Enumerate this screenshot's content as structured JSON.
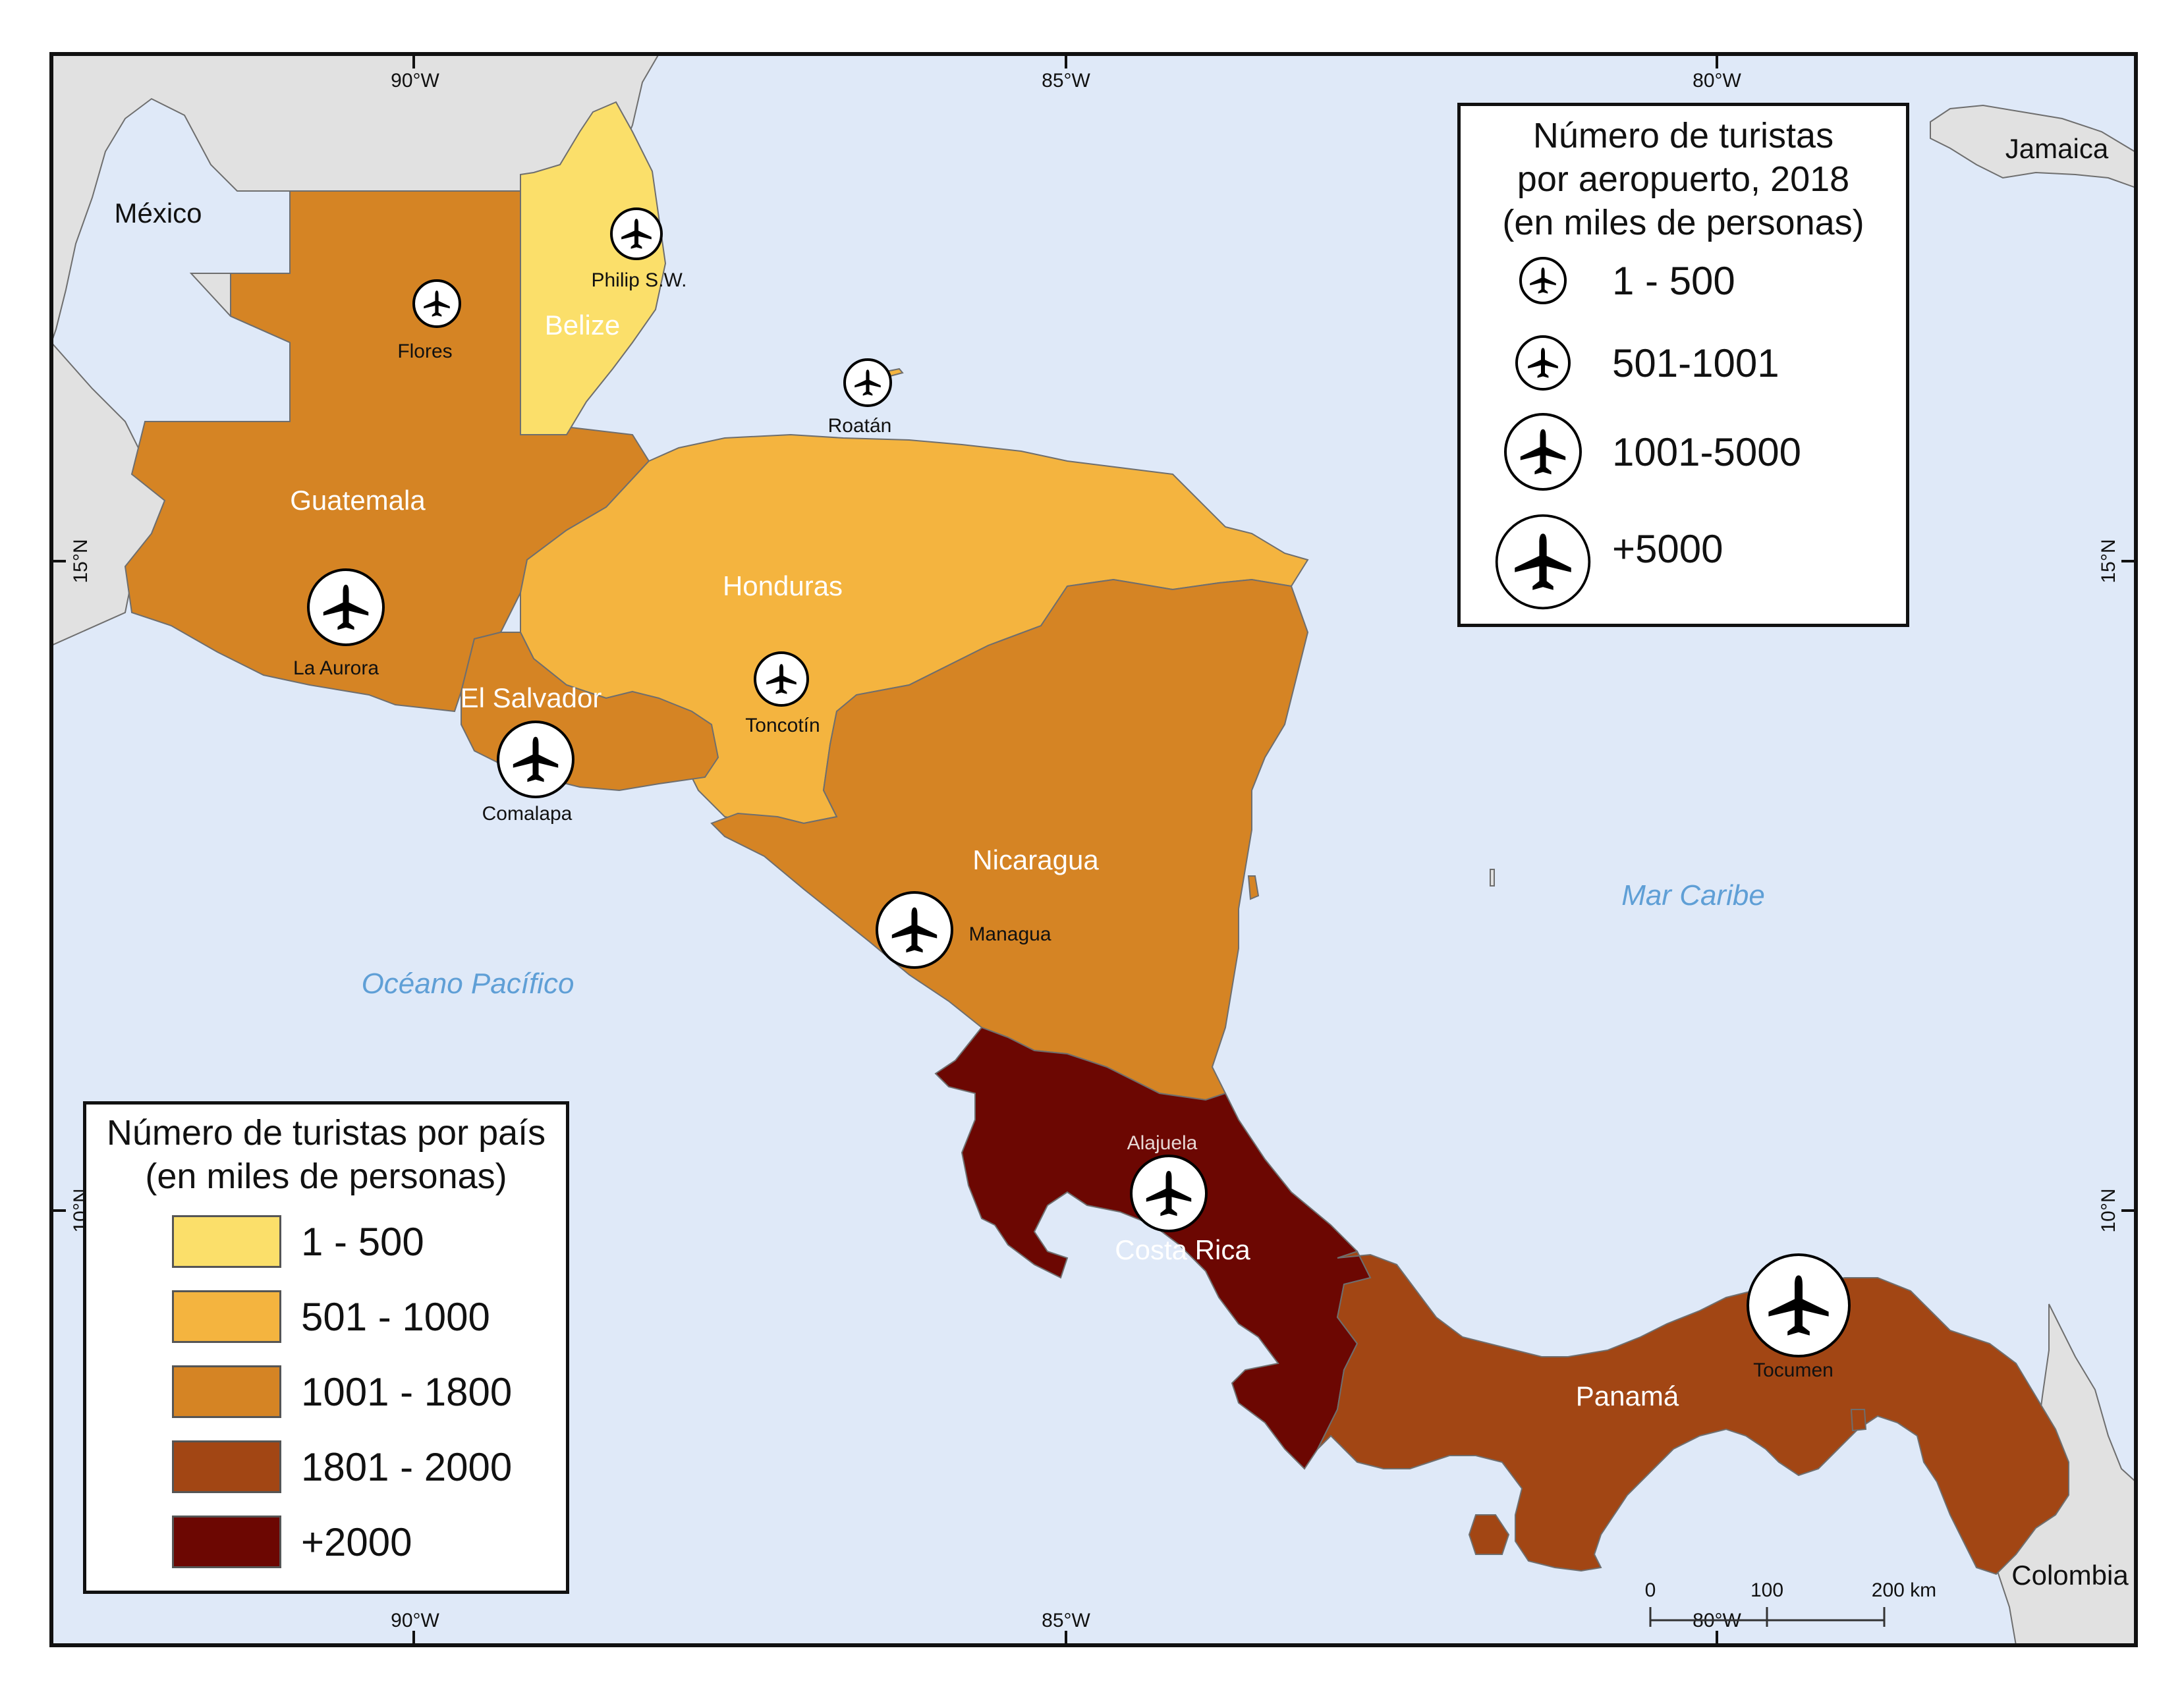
{
  "colors": {
    "sea": "#dfe9f8",
    "land_other": "#e1e1e1",
    "coast": "#6e6e6e",
    "class_1": "#fbdf6a",
    "class_2": "#f4b43f",
    "class_3": "#d58424",
    "class_4": "#a24614",
    "class_5": "#6c0702",
    "water_label": "#5f9fd6",
    "country_label": "#ffffff",
    "frame": "#111111"
  },
  "graticule": {
    "top": [
      "90°W",
      "85°W",
      "80°W"
    ],
    "bottom": [
      "90°W",
      "85°W",
      "80°W"
    ],
    "left": [
      "15°N",
      "10°N"
    ],
    "right": [
      "15°N",
      "10°N"
    ]
  },
  "countries": [
    {
      "id": "guatemala",
      "name": "Guatemala",
      "class": "class_3"
    },
    {
      "id": "belize",
      "name": "Belize",
      "class": "class_1"
    },
    {
      "id": "honduras",
      "name": "Honduras",
      "class": "class_2"
    },
    {
      "id": "el-salvador",
      "name": "El Salvador",
      "class": "class_3"
    },
    {
      "id": "nicaragua",
      "name": "Nicaragua",
      "class": "class_3"
    },
    {
      "id": "costa-rica",
      "name": "Costa Rica",
      "class": "class_5"
    },
    {
      "id": "panama",
      "name": "Panamá",
      "class": "class_4"
    }
  ],
  "other_places": [
    "México",
    "Jamaica",
    "Colombia"
  ],
  "water_bodies": [
    "Océano Pacífico",
    "Mar Caribe"
  ],
  "airports": [
    {
      "name": "Philip S.W.",
      "size_class": "1001-5000"
    },
    {
      "name": "Flores",
      "size_class": "1 - 500"
    },
    {
      "name": "Roatán",
      "size_class": "1 - 500"
    },
    {
      "name": "La Aurora",
      "size_class": "+5000"
    },
    {
      "name": "Comalapa",
      "size_class": "+5000"
    },
    {
      "name": "Toncotín",
      "size_class": "501-1001"
    },
    {
      "name": "Managua",
      "size_class": "+5000"
    },
    {
      "name": "Alajuela",
      "size_class": "+5000"
    },
    {
      "name": "Tocumen",
      "size_class": "+5000"
    }
  ],
  "legend_airports": {
    "title_lines": [
      "Número de turistas",
      "por aeropuerto, 2018",
      "(en miles de personas)"
    ],
    "items": [
      "1 - 500",
      "501-1001",
      "1001-5000",
      "+5000"
    ]
  },
  "legend_countries": {
    "title_lines": [
      "Número de turistas por país",
      "(en miles de personas)"
    ],
    "items": [
      {
        "label": "1 - 500",
        "color_key": "class_1"
      },
      {
        "label": "501 - 1000",
        "color_key": "class_2"
      },
      {
        "label": "1001 - 1800",
        "color_key": "class_3"
      },
      {
        "label": "1801 - 2000",
        "color_key": "class_4"
      },
      {
        "label": "+2000",
        "color_key": "class_5"
      }
    ]
  },
  "scale_bar": {
    "ticks": [
      "0",
      "100",
      "200 km"
    ]
  }
}
